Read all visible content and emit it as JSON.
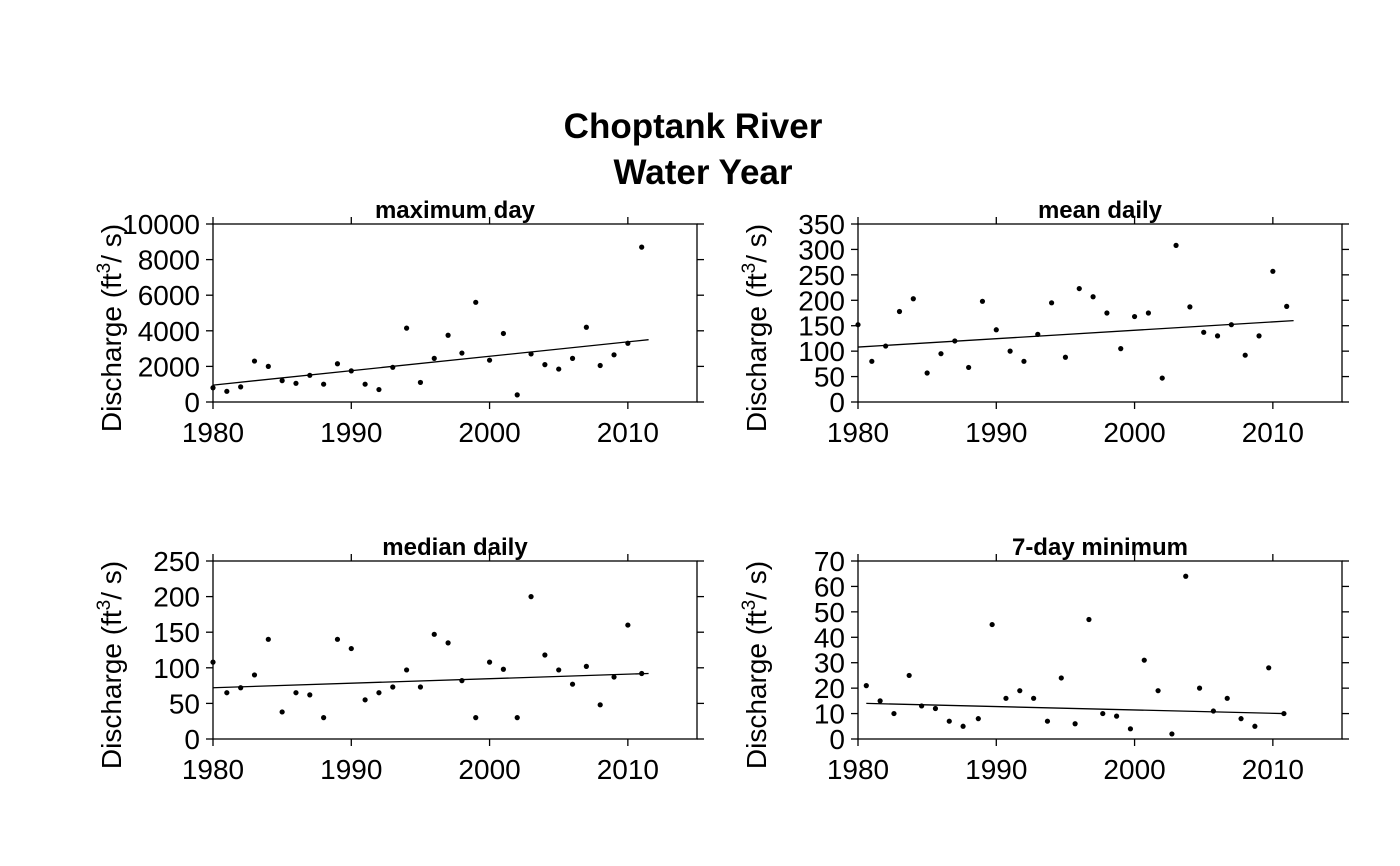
{
  "figure": {
    "title_line1": "Choptank River",
    "title_line2": "Water Year"
  },
  "chart_data": [
    {
      "type": "scatter",
      "title": "maximum day",
      "xlabel": "",
      "ylabel_prefix": "Discharge (ft",
      "ylabel_sup": "3",
      "ylabel_suffix": "/ s)",
      "xlim": [
        1980,
        2015
      ],
      "ylim": [
        0,
        10000
      ],
      "xticks": [
        1980,
        1990,
        2000,
        2010
      ],
      "yticks": [
        0,
        2000,
        4000,
        6000,
        8000,
        10000
      ],
      "x": [
        1980,
        1981,
        1982,
        1983,
        1984,
        1985,
        1986,
        1987,
        1988,
        1989,
        1990,
        1991,
        1992,
        1993,
        1994,
        1995,
        1996,
        1997,
        1998,
        1999,
        2000,
        2001,
        2002,
        2003,
        2004,
        2005,
        2006,
        2007,
        2008,
        2009,
        2010,
        2011
      ],
      "y": [
        800,
        600,
        850,
        2300,
        2000,
        1200,
        1050,
        1500,
        1000,
        2150,
        1750,
        1000,
        700,
        1950,
        4150,
        1100,
        2450,
        3750,
        2750,
        5600,
        2350,
        3850,
        400,
        2700,
        2100,
        1850,
        2450,
        4200,
        2050,
        2650,
        3300,
        8700
      ],
      "trend": {
        "x": [
          1980,
          2011.5
        ],
        "y": [
          950,
          3500
        ]
      },
      "grid": false,
      "legend": "none"
    },
    {
      "type": "scatter",
      "title": "mean daily",
      "xlabel": "",
      "ylabel_prefix": "Discharge (ft",
      "ylabel_sup": "3",
      "ylabel_suffix": "/ s)",
      "xlim": [
        1980,
        2015
      ],
      "ylim": [
        0,
        350
      ],
      "xticks": [
        1980,
        1990,
        2000,
        2010
      ],
      "yticks": [
        0,
        50,
        100,
        150,
        200,
        250,
        300,
        350
      ],
      "x": [
        1980,
        1981,
        1982,
        1983,
        1984,
        1985,
        1986,
        1987,
        1988,
        1989,
        1990,
        1991,
        1992,
        1993,
        1994,
        1995,
        1996,
        1997,
        1998,
        1999,
        2000,
        2001,
        2002,
        2003,
        2004,
        2005,
        2006,
        2007,
        2008,
        2009,
        2010,
        2011
      ],
      "y": [
        152,
        80,
        110,
        178,
        203,
        57,
        95,
        120,
        68,
        198,
        142,
        100,
        80,
        133,
        195,
        88,
        223,
        207,
        175,
        105,
        168,
        175,
        47,
        308,
        187,
        137,
        130,
        152,
        92,
        130,
        257,
        188
      ],
      "trend": {
        "x": [
          1980,
          2011.5
        ],
        "y": [
          108,
          160
        ]
      },
      "grid": false,
      "legend": "none"
    },
    {
      "type": "scatter",
      "title": "median daily",
      "xlabel": "",
      "ylabel_prefix": "Discharge (ft",
      "ylabel_sup": "3",
      "ylabel_suffix": "/ s)",
      "xlim": [
        1980,
        2015
      ],
      "ylim": [
        0,
        250
      ],
      "xticks": [
        1980,
        1990,
        2000,
        2010
      ],
      "yticks": [
        0,
        50,
        100,
        150,
        200,
        250
      ],
      "x": [
        1980,
        1981,
        1982,
        1983,
        1984,
        1985,
        1986,
        1987,
        1988,
        1989,
        1990,
        1991,
        1992,
        1993,
        1994,
        1995,
        1996,
        1997,
        1998,
        1999,
        2000,
        2001,
        2002,
        2003,
        2004,
        2005,
        2006,
        2007,
        2008,
        2009,
        2010,
        2011
      ],
      "y": [
        108,
        65,
        72,
        90,
        140,
        38,
        65,
        62,
        30,
        140,
        127,
        55,
        65,
        73,
        97,
        73,
        147,
        135,
        82,
        30,
        108,
        98,
        30,
        200,
        118,
        97,
        77,
        102,
        48,
        87,
        160,
        92
      ],
      "trend": {
        "x": [
          1980,
          2011.5
        ],
        "y": [
          72,
          92
        ]
      },
      "grid": false,
      "legend": "none"
    },
    {
      "type": "scatter",
      "title": "7-day minimum",
      "xlabel": "",
      "ylabel_prefix": "Discharge (ft",
      "ylabel_sup": "3",
      "ylabel_suffix": "/ s)",
      "xlim": [
        1980,
        2015
      ],
      "ylim": [
        0,
        70
      ],
      "xticks": [
        1980,
        1990,
        2000,
        2010
      ],
      "yticks": [
        0,
        10,
        20,
        30,
        40,
        50,
        60,
        70
      ],
      "x": [
        1980.6,
        1981.6,
        1982.6,
        1983.7,
        1984.6,
        1985.6,
        1986.6,
        1987.6,
        1988.7,
        1989.7,
        1990.7,
        1991.7,
        1992.7,
        1993.7,
        1994.7,
        1995.7,
        1996.7,
        1997.7,
        1998.7,
        1999.7,
        2000.7,
        2001.7,
        2002.7,
        2003.7,
        2004.7,
        2005.7,
        2006.7,
        2007.7,
        2008.7,
        2009.7,
        2010.8
      ],
      "y": [
        21,
        15,
        10,
        25,
        13,
        12,
        7,
        5,
        8,
        45,
        16,
        19,
        16,
        7,
        24,
        6,
        47,
        10,
        9,
        4,
        31,
        19,
        2,
        64,
        20,
        11,
        16,
        8,
        5,
        28,
        10
      ],
      "trend": {
        "x": [
          1980.6,
          2010.8
        ],
        "y": [
          14,
          10
        ]
      },
      "grid": false,
      "legend": "none"
    }
  ]
}
